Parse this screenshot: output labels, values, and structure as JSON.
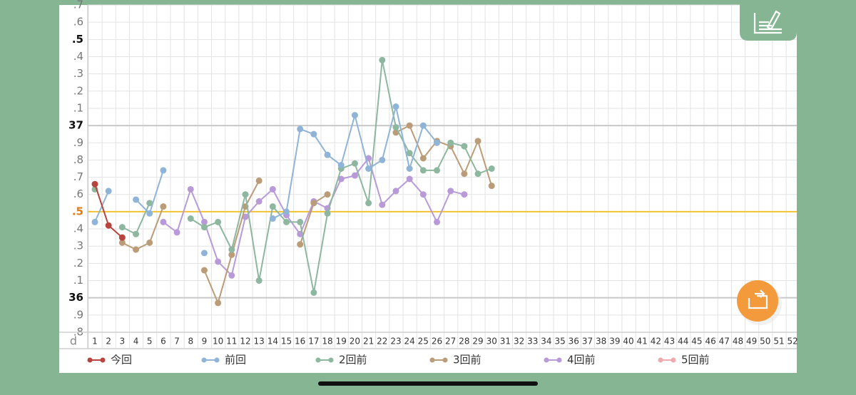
{
  "chart_data": {
    "type": "line",
    "x_label": "d",
    "categories": [
      1,
      2,
      3,
      4,
      5,
      6,
      7,
      8,
      9,
      10,
      11,
      12,
      13,
      14,
      15,
      16,
      17,
      18,
      19,
      20,
      21,
      22,
      23,
      24,
      25,
      26,
      27,
      28,
      29,
      30,
      31,
      32,
      33,
      34,
      35,
      36,
      37,
      38,
      39,
      40,
      41,
      42,
      43,
      44,
      45,
      46,
      47,
      48,
      49,
      50,
      51,
      52
    ],
    "ylim": [
      35.8,
      37.7
    ],
    "yticks": [
      {
        "value": 35.8,
        "label": ".8"
      },
      {
        "value": 35.9,
        "label": ".9"
      },
      36,
      {
        "value": 36.1,
        "label": ".1"
      },
      {
        "value": 36.2,
        "label": ".2"
      },
      {
        "value": 36.3,
        "label": ".3"
      },
      {
        "value": 36.4,
        "label": ".4"
      },
      {
        "value": 36.5,
        "label": ".5"
      },
      {
        "value": 36.6,
        "label": ".6"
      },
      {
        "value": 36.7,
        "label": ".7"
      },
      {
        "value": 36.8,
        "label": ".8"
      },
      {
        "value": 36.9,
        "label": ".9"
      },
      37,
      {
        "value": 37.1,
        "label": ".1"
      },
      {
        "value": 37.2,
        "label": ".2"
      },
      {
        "value": 37.3,
        "label": ".3"
      },
      {
        "value": 37.4,
        "label": ".4"
      },
      {
        "value": 37.5,
        "label": ".5"
      },
      {
        "value": 37.6,
        "label": ".6"
      },
      {
        "value": 37.7,
        "label": ".7"
      }
    ],
    "grid": true,
    "reference_line": {
      "value": 36.5,
      "color": "#f2c233"
    },
    "series": [
      {
        "name": "今回",
        "color": "#b8453d",
        "values": [
          36.66,
          36.42,
          36.35,
          null,
          null,
          null,
          null,
          null,
          null,
          null,
          null,
          null,
          null,
          null,
          null,
          null,
          null,
          null,
          null,
          null,
          null,
          null,
          null,
          null,
          null,
          null,
          null,
          null,
          null,
          null,
          null,
          null,
          null,
          null,
          null,
          null,
          null,
          null,
          null,
          null,
          null,
          null,
          null,
          null,
          null,
          null,
          null,
          null,
          null,
          null,
          null,
          null
        ]
      },
      {
        "name": "前回",
        "color": "#8fb4d8",
        "values": [
          36.44,
          36.62,
          null,
          36.57,
          36.49,
          36.74,
          null,
          null,
          36.26,
          null,
          null,
          null,
          null,
          36.46,
          36.5,
          36.98,
          36.95,
          36.83,
          36.77,
          37.06,
          36.75,
          36.8,
          37.11,
          36.75,
          37.0,
          36.9,
          null,
          null,
          null,
          null,
          null,
          null,
          null,
          null,
          null,
          null,
          null,
          null,
          null,
          null,
          null,
          null,
          null,
          null,
          null,
          null,
          null,
          null,
          null,
          null,
          null,
          null
        ]
      },
      {
        "name": "2回前",
        "color": "#8db79f",
        "values": [
          36.63,
          null,
          36.41,
          36.37,
          36.55,
          null,
          null,
          36.46,
          36.41,
          36.44,
          36.28,
          36.6,
          36.1,
          36.53,
          36.44,
          36.44,
          36.03,
          36.49,
          36.75,
          36.78,
          36.55,
          37.38,
          36.99,
          36.84,
          36.74,
          36.74,
          36.9,
          36.88,
          36.72,
          36.75,
          null,
          null,
          null,
          null,
          null,
          null,
          null,
          null,
          null,
          null,
          null,
          null,
          null,
          null,
          null,
          null,
          null,
          null,
          null,
          null,
          null,
          null
        ]
      },
      {
        "name": "3回前",
        "color": "#bb9c78",
        "values": [
          null,
          null,
          36.32,
          36.28,
          36.32,
          36.53,
          null,
          null,
          36.16,
          35.97,
          36.25,
          36.53,
          36.68,
          null,
          null,
          36.31,
          36.55,
          36.6,
          null,
          null,
          null,
          null,
          36.96,
          37.0,
          36.81,
          36.91,
          36.88,
          36.72,
          36.91,
          36.65,
          null,
          null,
          null,
          null,
          null,
          null,
          null,
          null,
          null,
          null,
          null,
          null,
          null,
          null,
          null,
          null,
          null,
          null,
          null,
          null,
          null,
          null
        ]
      },
      {
        "name": "4回前",
        "color": "#b89ad8",
        "values": [
          null,
          null,
          null,
          null,
          null,
          36.44,
          36.38,
          36.63,
          36.44,
          36.21,
          36.13,
          36.47,
          36.56,
          36.63,
          36.48,
          36.37,
          36.56,
          36.52,
          36.69,
          36.71,
          36.81,
          36.54,
          36.62,
          36.69,
          36.6,
          36.44,
          36.62,
          36.6,
          null,
          null,
          null,
          null,
          null,
          null,
          null,
          null,
          null,
          null,
          null,
          null,
          null,
          null,
          null,
          null,
          null,
          null,
          null,
          null,
          null,
          null,
          null,
          null
        ]
      },
      {
        "name": "5回前",
        "color": "#eeaaae",
        "values": [
          null,
          null,
          null,
          null,
          null,
          null,
          null,
          null,
          null,
          null,
          null,
          null,
          null,
          null,
          null,
          null,
          null,
          null,
          null,
          null,
          null,
          null,
          null,
          null,
          null,
          null,
          null,
          null,
          null,
          null,
          null,
          null,
          null,
          null,
          null,
          null,
          null,
          null,
          null,
          null,
          null,
          null,
          null,
          null,
          null,
          null,
          null,
          null,
          null,
          null,
          null,
          null
        ]
      }
    ]
  }
}
